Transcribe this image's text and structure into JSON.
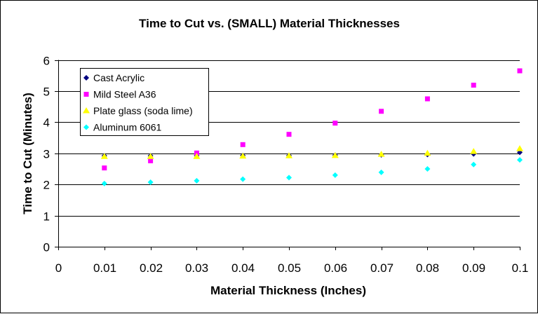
{
  "chart_data": {
    "type": "scatter",
    "title": "Time to Cut vs. (SMALL) Material Thicknesses",
    "xlabel": "Material Thickness (Inches)",
    "ylabel": "Time to Cut (Minutes)",
    "xlim": [
      0,
      0.1
    ],
    "ylim": [
      0,
      6
    ],
    "x_ticks": [
      "0",
      "0.01",
      "0.02",
      "0.03",
      "0.04",
      "0.05",
      "0.06",
      "0.07",
      "0.08",
      "0.09",
      "0.1"
    ],
    "y_ticks": [
      "0",
      "1",
      "2",
      "3",
      "4",
      "5",
      "6"
    ],
    "grid": "horizontal",
    "legend_position": "top-left",
    "x": [
      0.01,
      0.02,
      0.03,
      0.04,
      0.05,
      0.06,
      0.07,
      0.08,
      0.09,
      0.1
    ],
    "series": [
      {
        "name": "Cast Acrylic",
        "marker": "diamond",
        "color": "#000080",
        "values": [
          2.92,
          2.92,
          2.93,
          2.93,
          2.93,
          2.94,
          2.95,
          2.96,
          2.98,
          3.03
        ]
      },
      {
        "name": "Mild Steel A36",
        "marker": "square",
        "color": "#FF00FF",
        "values": [
          2.53,
          2.76,
          3.01,
          3.28,
          3.61,
          3.97,
          4.35,
          4.75,
          5.19,
          5.65
        ]
      },
      {
        "name": "Plate glass (soda lime)",
        "marker": "triangle",
        "color": "#FFFF00",
        "values": [
          2.9,
          2.9,
          2.9,
          2.91,
          2.92,
          2.93,
          2.97,
          3.0,
          3.06,
          3.15
        ]
      },
      {
        "name": "Aluminum 6061",
        "marker": "diamond",
        "color": "#00FFFF",
        "values": [
          2.03,
          2.07,
          2.12,
          2.17,
          2.22,
          2.3,
          2.39,
          2.5,
          2.64,
          2.79
        ]
      }
    ]
  }
}
